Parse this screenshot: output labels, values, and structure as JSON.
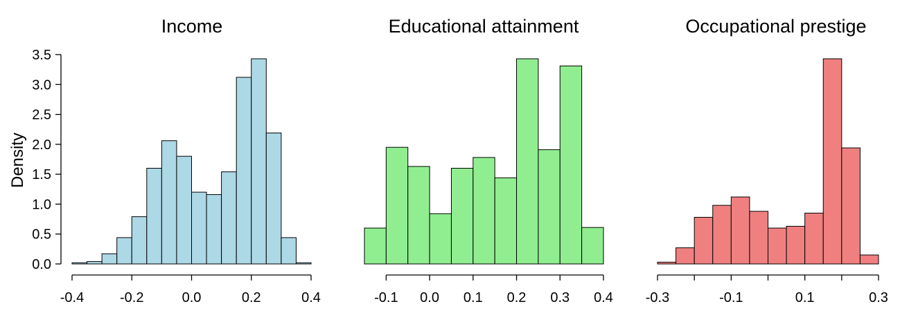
{
  "chart_data": [
    {
      "type": "bar",
      "title": "Income",
      "xlabel": "",
      "ylabel": "Density",
      "color": "#add8e6",
      "bin_edges": [
        -0.4,
        -0.35,
        -0.3,
        -0.25,
        -0.2,
        -0.15,
        -0.1,
        -0.05,
        0.0,
        0.05,
        0.1,
        0.15,
        0.2,
        0.25,
        0.3,
        0.35,
        0.4
      ],
      "values": [
        0.02,
        0.04,
        0.17,
        0.44,
        0.79,
        1.6,
        2.06,
        1.8,
        1.2,
        1.16,
        1.54,
        3.12,
        3.43,
        2.19,
        0.44,
        0.02
      ],
      "xlim": [
        -0.4,
        0.4
      ],
      "ylim": [
        0,
        3.5
      ],
      "x_ticks": [
        -0.4,
        -0.2,
        0.0,
        0.2,
        0.4
      ],
      "x_tick_labels": [
        "-0.4",
        "-0.2",
        "0.0",
        "0.2",
        "0.4"
      ],
      "y_ticks": [
        0.0,
        0.5,
        1.0,
        1.5,
        2.0,
        2.5,
        3.0,
        3.5
      ],
      "y_tick_labels": [
        "0.0",
        "0.5",
        "1.0",
        "1.5",
        "2.0",
        "2.5",
        "3.0",
        "3.5"
      ],
      "grid": false
    },
    {
      "type": "bar",
      "title": "Educational attainment",
      "xlabel": "",
      "ylabel": "",
      "color": "#90ee90",
      "bin_edges": [
        -0.15,
        -0.1,
        -0.05,
        0.0,
        0.05,
        0.1,
        0.15,
        0.2,
        0.25,
        0.3,
        0.35,
        0.4
      ],
      "values": [
        0.6,
        1.95,
        1.63,
        0.84,
        1.6,
        1.78,
        1.44,
        3.43,
        1.91,
        3.31,
        0.61
      ],
      "xlim": [
        -0.15,
        0.4
      ],
      "ylim": [
        0,
        3.5
      ],
      "x_ticks": [
        -0.1,
        0.0,
        0.1,
        0.2,
        0.3,
        0.4
      ],
      "x_tick_labels": [
        "-0.1",
        "0.0",
        "0.1",
        "0.2",
        "0.3",
        "0.4"
      ],
      "grid": false
    },
    {
      "type": "bar",
      "title": "Occupational prestige",
      "xlabel": "",
      "ylabel": "",
      "color": "#f08080",
      "bin_edges": [
        -0.3,
        -0.25,
        -0.2,
        -0.15,
        -0.1,
        -0.05,
        0.0,
        0.05,
        0.1,
        0.15,
        0.2,
        0.25,
        0.3
      ],
      "values": [
        0.03,
        0.27,
        0.78,
        0.98,
        1.12,
        0.88,
        0.6,
        0.63,
        0.85,
        3.43,
        1.94,
        0.15
      ],
      "xlim": [
        -0.3,
        0.3
      ],
      "ylim": [
        0,
        3.5
      ],
      "x_ticks": [
        -0.3,
        -0.2,
        -0.1,
        0.0,
        0.1,
        0.2,
        0.3
      ],
      "x_tick_labels": [
        "-0.3",
        "",
        "-0.1",
        "",
        "0.1",
        "",
        "0.3"
      ],
      "grid": false
    }
  ]
}
